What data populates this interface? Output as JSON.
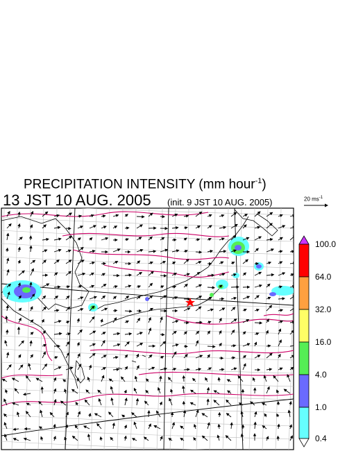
{
  "header": {
    "title_main": "PRECIPITATION INTENSITY (mm hour",
    "title_exp": "-1",
    "title_close": ")",
    "date_line": "13 JST 10 AUG. 2005",
    "init_line": "(init. 9 JST 10 AUG. 2005)"
  },
  "wind_scale": {
    "label_main": "20 ms",
    "label_exp": "-1"
  },
  "colorbar": {
    "ticks": [
      "100.0",
      "64.0",
      "32.0",
      "16.0",
      "4.0",
      "1.0",
      "0.4"
    ],
    "colors": [
      "#ff0000",
      "#ffa040",
      "#ffff66",
      "#55ee55",
      "#6a6aff",
      "#66ffff"
    ],
    "over_color": "#cc33ff",
    "under_color": "#ffffff"
  },
  "map": {
    "contour_color": "#cc0066",
    "marker_color": "#ff0000",
    "marker_icon": "star-icon"
  }
}
